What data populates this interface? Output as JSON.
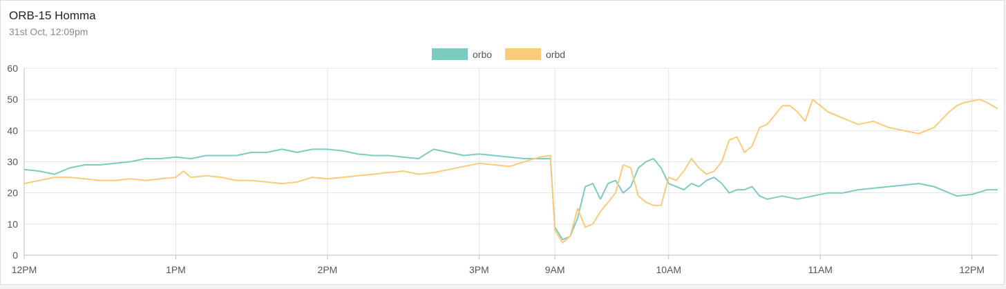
{
  "header": {
    "title": "ORB-15 Homma",
    "subtitle": "31st Oct, 12:09pm"
  },
  "chart_data": {
    "type": "line",
    "title": "",
    "xlabel": "",
    "ylabel": "",
    "ylim": [
      0,
      60
    ],
    "yticks": [
      0,
      10,
      20,
      30,
      40,
      50,
      60
    ],
    "xticks": [
      "12PM",
      "1PM",
      "2PM",
      "3PM",
      "9AM",
      "10AM",
      "11AM",
      "12PM"
    ],
    "x_positions": [
      0,
      1,
      2,
      3,
      3.5,
      4.25,
      5.25,
      6.25
    ],
    "x_range": [
      0,
      6.42
    ],
    "grid": true,
    "legend": "top-center",
    "series": [
      {
        "name": "orbo",
        "color": "#7ccbc1",
        "points": [
          [
            0,
            27.5
          ],
          [
            0.1,
            27
          ],
          [
            0.2,
            26
          ],
          [
            0.3,
            28
          ],
          [
            0.4,
            29
          ],
          [
            0.5,
            29
          ],
          [
            0.6,
            29.5
          ],
          [
            0.7,
            30
          ],
          [
            0.8,
            31
          ],
          [
            0.9,
            31
          ],
          [
            1.0,
            31.5
          ],
          [
            1.1,
            31
          ],
          [
            1.2,
            32
          ],
          [
            1.3,
            32
          ],
          [
            1.4,
            32
          ],
          [
            1.5,
            33
          ],
          [
            1.6,
            33
          ],
          [
            1.7,
            34
          ],
          [
            1.8,
            33
          ],
          [
            1.9,
            34
          ],
          [
            2.0,
            34
          ],
          [
            2.1,
            33.5
          ],
          [
            2.2,
            32.5
          ],
          [
            2.3,
            32
          ],
          [
            2.4,
            32
          ],
          [
            2.5,
            31.5
          ],
          [
            2.6,
            31
          ],
          [
            2.7,
            34
          ],
          [
            2.8,
            33
          ],
          [
            2.9,
            32
          ],
          [
            3.0,
            32.5
          ],
          [
            3.1,
            32
          ],
          [
            3.2,
            31.5
          ],
          [
            3.3,
            31
          ],
          [
            3.4,
            31
          ],
          [
            3.47,
            31
          ],
          [
            3.5,
            9
          ],
          [
            3.55,
            5
          ],
          [
            3.6,
            6
          ],
          [
            3.65,
            12
          ],
          [
            3.7,
            22
          ],
          [
            3.75,
            23
          ],
          [
            3.8,
            18
          ],
          [
            3.85,
            23
          ],
          [
            3.9,
            24
          ],
          [
            3.95,
            20
          ],
          [
            4.0,
            22
          ],
          [
            4.05,
            28
          ],
          [
            4.1,
            30
          ],
          [
            4.15,
            31
          ],
          [
            4.2,
            28
          ],
          [
            4.25,
            23
          ],
          [
            4.3,
            22
          ],
          [
            4.35,
            21
          ],
          [
            4.4,
            23
          ],
          [
            4.45,
            22
          ],
          [
            4.5,
            24
          ],
          [
            4.55,
            25
          ],
          [
            4.6,
            23
          ],
          [
            4.65,
            20
          ],
          [
            4.7,
            21
          ],
          [
            4.75,
            21
          ],
          [
            4.8,
            22
          ],
          [
            4.85,
            19
          ],
          [
            4.9,
            18
          ],
          [
            5.0,
            19
          ],
          [
            5.1,
            18
          ],
          [
            5.2,
            19
          ],
          [
            5.3,
            20
          ],
          [
            5.4,
            20
          ],
          [
            5.5,
            21
          ],
          [
            5.6,
            21.5
          ],
          [
            5.7,
            22
          ],
          [
            5.8,
            22.5
          ],
          [
            5.9,
            23
          ],
          [
            6.0,
            22
          ],
          [
            6.1,
            20
          ],
          [
            6.15,
            19
          ],
          [
            6.25,
            19.5
          ],
          [
            6.35,
            21
          ],
          [
            6.42,
            21
          ]
        ]
      },
      {
        "name": "orbd",
        "color": "#fbcb7a",
        "points": [
          [
            0,
            23
          ],
          [
            0.1,
            24
          ],
          [
            0.2,
            25
          ],
          [
            0.3,
            25
          ],
          [
            0.4,
            24.5
          ],
          [
            0.5,
            24
          ],
          [
            0.6,
            24
          ],
          [
            0.7,
            24.5
          ],
          [
            0.8,
            24
          ],
          [
            0.9,
            24.5
          ],
          [
            1.0,
            25
          ],
          [
            1.05,
            27
          ],
          [
            1.1,
            25
          ],
          [
            1.2,
            25.5
          ],
          [
            1.3,
            25
          ],
          [
            1.4,
            24
          ],
          [
            1.5,
            24
          ],
          [
            1.6,
            23.5
          ],
          [
            1.7,
            23
          ],
          [
            1.8,
            23.5
          ],
          [
            1.9,
            25
          ],
          [
            2.0,
            24.5
          ],
          [
            2.1,
            25
          ],
          [
            2.2,
            25.5
          ],
          [
            2.3,
            26
          ],
          [
            2.4,
            26.5
          ],
          [
            2.5,
            27
          ],
          [
            2.6,
            26
          ],
          [
            2.7,
            26.5
          ],
          [
            2.8,
            27.5
          ],
          [
            2.9,
            28.5
          ],
          [
            3.0,
            29.5
          ],
          [
            3.1,
            29
          ],
          [
            3.2,
            28.5
          ],
          [
            3.3,
            30
          ],
          [
            3.4,
            31.5
          ],
          [
            3.47,
            32
          ],
          [
            3.5,
            8
          ],
          [
            3.55,
            4
          ],
          [
            3.6,
            6
          ],
          [
            3.65,
            15
          ],
          [
            3.7,
            9
          ],
          [
            3.75,
            10
          ],
          [
            3.8,
            14
          ],
          [
            3.85,
            17
          ],
          [
            3.9,
            20
          ],
          [
            3.95,
            29
          ],
          [
            4.0,
            28
          ],
          [
            4.05,
            19
          ],
          [
            4.1,
            17
          ],
          [
            4.15,
            16
          ],
          [
            4.2,
            16
          ],
          [
            4.25,
            25
          ],
          [
            4.3,
            24
          ],
          [
            4.35,
            27
          ],
          [
            4.4,
            31
          ],
          [
            4.45,
            28
          ],
          [
            4.5,
            26
          ],
          [
            4.55,
            27
          ],
          [
            4.6,
            30
          ],
          [
            4.65,
            37
          ],
          [
            4.7,
            38
          ],
          [
            4.75,
            33
          ],
          [
            4.8,
            35
          ],
          [
            4.85,
            41
          ],
          [
            4.9,
            42
          ],
          [
            4.95,
            45
          ],
          [
            5.0,
            48
          ],
          [
            5.05,
            48
          ],
          [
            5.1,
            46
          ],
          [
            5.15,
            43
          ],
          [
            5.2,
            50
          ],
          [
            5.25,
            48
          ],
          [
            5.3,
            46
          ],
          [
            5.35,
            45
          ],
          [
            5.4,
            44
          ],
          [
            5.45,
            43
          ],
          [
            5.5,
            42
          ],
          [
            5.6,
            43
          ],
          [
            5.7,
            41
          ],
          [
            5.8,
            40
          ],
          [
            5.9,
            39
          ],
          [
            6.0,
            41
          ],
          [
            6.1,
            46
          ],
          [
            6.15,
            48
          ],
          [
            6.2,
            49
          ],
          [
            6.3,
            50
          ],
          [
            6.35,
            49
          ],
          [
            6.42,
            47
          ]
        ]
      }
    ]
  }
}
